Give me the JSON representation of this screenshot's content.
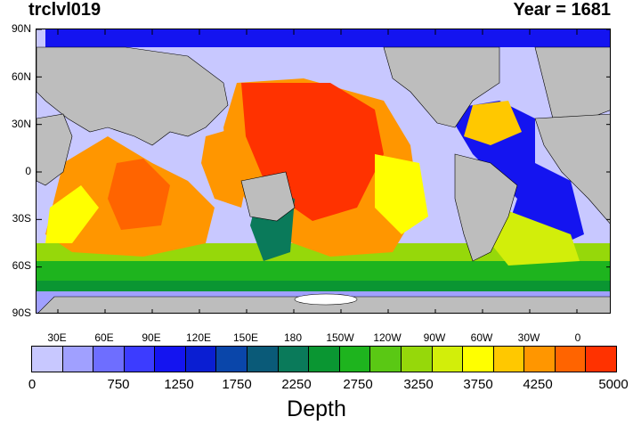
{
  "title_left": "trclvl019",
  "title_right": "Year = 1681",
  "lat_labels": [
    "90N",
    "60N",
    "30N",
    "0",
    "30S",
    "60S",
    "90S"
  ],
  "lon_labels": [
    "30E",
    "60E",
    "90E",
    "120E",
    "150E",
    "180",
    "150W",
    "120W",
    "90W",
    "60W",
    "30W",
    "0"
  ],
  "colorbar": {
    "title": "Depth",
    "labels": [
      "0",
      "750",
      "1250",
      "1750",
      "2250",
      "2750",
      "3250",
      "3750",
      "4250",
      "5000"
    ],
    "colors": [
      "#c8c8ff",
      "#a0a0ff",
      "#6e6eff",
      "#3c3cff",
      "#1414f0",
      "#0a1ed2",
      "#0a46aa",
      "#0a5a78",
      "#0a7a5a",
      "#0a9632",
      "#1eb41e",
      "#5ac814",
      "#96d80a",
      "#d2ee0a",
      "#ffff00",
      "#ffc800",
      "#ff9600",
      "#ff6400",
      "#ff3200"
    ]
  },
  "map_colors": {
    "land": "#bdbdbd",
    "ice": "#ffffff",
    "coastline": "#000000"
  }
}
